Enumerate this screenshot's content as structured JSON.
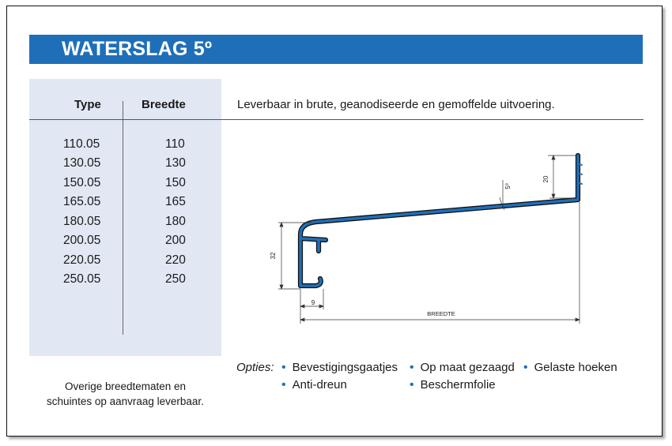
{
  "title": "WATERSLAG 5º",
  "table": {
    "headers": {
      "type": "Type",
      "breedte": "Breedte"
    },
    "rows": [
      {
        "type": "110.05",
        "breedte": "110"
      },
      {
        "type": "130.05",
        "breedte": "130"
      },
      {
        "type": "150.05",
        "breedte": "150"
      },
      {
        "type": "165.05",
        "breedte": "165"
      },
      {
        "type": "180.05",
        "breedte": "180"
      },
      {
        "type": "200.05",
        "breedte": "200"
      },
      {
        "type": "220.05",
        "breedte": "220"
      },
      {
        "type": "250.05",
        "breedte": "250"
      }
    ]
  },
  "description": "Leverbaar in brute, geanodiseerde en gemoffelde uitvoering.",
  "note": {
    "line1": "Overige breedtematen en",
    "line2": "schuintes op aanvraag leverbaar."
  },
  "drawing": {
    "dim_height_front": "32",
    "dim_height_back": "20",
    "dim_angle": "5º",
    "dim_front_width": "9",
    "dim_breedte": "BREEDTE",
    "profile_color": "#1f6fb8"
  },
  "options": {
    "label": "Opties:",
    "items": [
      "Bevestigingsgaatjes",
      "Op maat gezaagd",
      "Gelaste hoeken",
      "Anti-dreun",
      "Beschermfolie"
    ],
    "bullet_color": "#1f6fb8"
  }
}
